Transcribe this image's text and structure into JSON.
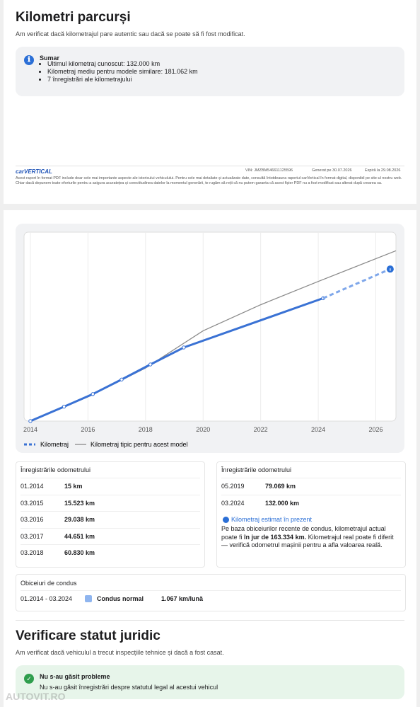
{
  "section1": {
    "title": "Kilometri parcurși",
    "subtitle": "Am verificat dacă kilometrajul pare autentic sau dacă se poate să fi fost modificat.",
    "summary": {
      "heading": "Sumar",
      "items": [
        "Ultimul kilometraj cunoscut: 132.000 km",
        "Kilometraj mediu pentru modele similare: 181.062 km",
        "7 înregistrări ale kilometrajului"
      ]
    },
    "footer": {
      "logo": "carVERTICAL",
      "disclaimer": "Acest raport în format PDF include doar cele mai importante aspecte ale istoricului vehiculului. Pentru cele mai detaliate și actualizate date, consultă întotdeauna raportul carVertical în format digital, disponibil pe site-ul nostru web. Chiar dacă depunem toate eforturile pentru a asigura acuratețea și corectitudinea datelor la momentul generării, te rugăm să reții că nu putem garanta că acest fișier PDF nu a fost modificat sau alterat după crearea sa.",
      "vin": "VIN: JMZBM546611125596",
      "generated": "Generat pe 30.07.2026",
      "expires": "Expiră la 29.08.2026"
    }
  },
  "chart": {
    "type": "line",
    "xlim": [
      2013.78,
      2026.7
    ],
    "ylim": [
      0,
      203000
    ],
    "xticks": [
      2014,
      2016,
      2018,
      2020,
      2022,
      2024,
      2026
    ],
    "series": [
      {
        "name": "Kilometraj",
        "color": "#3a72d4",
        "x": [
          2014.0,
          2015.17,
          2016.17,
          2017.17,
          2018.17,
          2019.33,
          2024.17
        ],
        "values": [
          15,
          15523,
          29038,
          44651,
          60830,
          79069,
          132000
        ]
      },
      {
        "name": "Kilometraj tipic pentru acest model",
        "color": "#8a8a8a",
        "x": [
          2014.0,
          2016,
          2018,
          2020,
          2022,
          2024,
          2026.7
        ],
        "values": [
          0,
          26000,
          57000,
          97000,
          125000,
          150000,
          183000
        ]
      }
    ],
    "estimate": {
      "x": 2026.5,
      "value": 163334
    }
  },
  "odometer_left": {
    "heading": "Înregistrările odometrului",
    "rows": [
      [
        "01.2014",
        "15 km"
      ],
      [
        "03.2015",
        "15.523 km"
      ],
      [
        "03.2016",
        "29.038 km"
      ],
      [
        "03.2017",
        "44.651 km"
      ],
      [
        "03.2018",
        "60.830 km"
      ]
    ]
  },
  "odometer_right": {
    "heading": "Înregistrările odometrului",
    "rows": [
      [
        "05.2019",
        "79.069 km"
      ],
      [
        "03.2024",
        "132.000 km"
      ]
    ],
    "estimate_title": "Kilometraj estimat în prezent",
    "estimate_text": [
      "Pe baza obiceiurilor recente de condus, kilometrajul actual poate fi ",
      "în jur de 163.334 km.",
      " Kilometrajul real poate fi diferit — verifică odometrul mașinii pentru a afla valoarea reală."
    ]
  },
  "habits": {
    "heading": "Obiceiuri de condus",
    "period": "01.2014 - 03.2024",
    "label": "Condus normal",
    "rate": "1.067 km/lună"
  },
  "section2": {
    "title": "Verificare statut juridic",
    "subtitle": "Am verificat dacă vehiculul a trecut inspecțiile tehnice și dacă a fost casat.",
    "status_title": "Nu s-au găsit probleme",
    "status_text": "Nu s-au găsit înregistrări despre statutul legal al acestui vehicul"
  },
  "watermark": "AUTOVIT.RO"
}
